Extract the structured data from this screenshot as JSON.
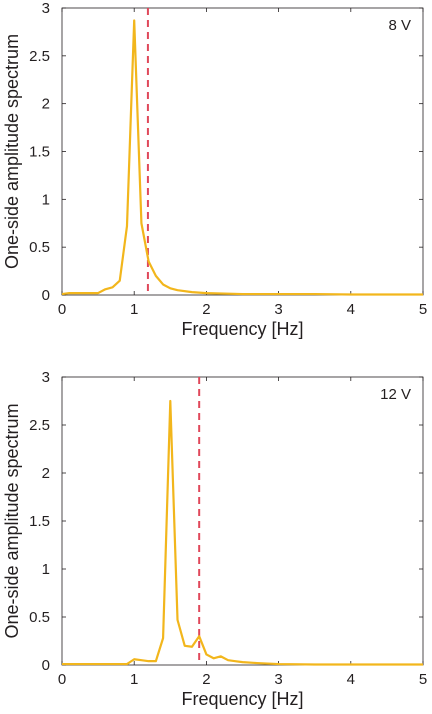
{
  "chart_data": [
    {
      "type": "line",
      "title": "",
      "annotation": "8 V",
      "xlabel": "Frequency [Hz]",
      "ylabel": "One-side amplitude spectrum",
      "xlim": [
        0,
        5
      ],
      "ylim": [
        0,
        3
      ],
      "xticks": [
        "0",
        "1",
        "2",
        "3",
        "4",
        "5"
      ],
      "yticks": [
        "0",
        "0.5",
        "1",
        "1.5",
        "2",
        "2.5",
        "3"
      ],
      "grid": false,
      "legend": "none",
      "colors": {
        "spectrum": "#f2b61c",
        "marker": "#e0485a"
      },
      "marker_line": {
        "x": 1.19,
        "style": "dashed"
      },
      "series": [
        {
          "x": [
            0,
            0.1,
            0.2,
            0.3,
            0.4,
            0.5,
            0.6,
            0.7,
            0.8,
            0.9,
            1.0,
            1.1,
            1.2,
            1.3,
            1.4,
            1.5,
            1.6,
            1.8,
            2.0,
            2.5,
            3.0,
            3.5,
            4.0,
            4.5,
            5.0
          ],
          "values": [
            0.01,
            0.02,
            0.02,
            0.02,
            0.02,
            0.02,
            0.06,
            0.08,
            0.15,
            0.72,
            2.87,
            0.75,
            0.35,
            0.2,
            0.11,
            0.07,
            0.05,
            0.03,
            0.02,
            0.01,
            0.01,
            0.01,
            0.005,
            0.005,
            0.005
          ]
        }
      ]
    },
    {
      "type": "line",
      "title": "",
      "annotation": "12 V",
      "xlabel": "Frequency [Hz]",
      "ylabel": "One-side amplitude spectrum",
      "xlim": [
        0,
        5
      ],
      "ylim": [
        0,
        3
      ],
      "xticks": [
        "0",
        "1",
        "2",
        "3",
        "4",
        "5"
      ],
      "yticks": [
        "0",
        "0.5",
        "1",
        "1.5",
        "2",
        "2.5",
        "3"
      ],
      "grid": false,
      "legend": "none",
      "colors": {
        "spectrum": "#f2b61c",
        "marker": "#e0485a"
      },
      "marker_line": {
        "x": 1.9,
        "style": "dashed"
      },
      "series": [
        {
          "x": [
            0,
            0.1,
            0.3,
            0.5,
            0.7,
            0.9,
            1.0,
            1.1,
            1.2,
            1.3,
            1.4,
            1.5,
            1.6,
            1.7,
            1.8,
            1.9,
            2.0,
            2.1,
            2.2,
            2.3,
            2.4,
            2.5,
            2.7,
            3.0,
            3.5,
            4.0,
            4.5,
            5.0
          ],
          "values": [
            0.01,
            0.01,
            0.01,
            0.01,
            0.01,
            0.01,
            0.06,
            0.05,
            0.04,
            0.04,
            0.28,
            2.75,
            0.47,
            0.2,
            0.19,
            0.3,
            0.11,
            0.07,
            0.09,
            0.05,
            0.04,
            0.03,
            0.02,
            0.01,
            0.005,
            0.005,
            0.005,
            0.005
          ]
        }
      ]
    }
  ]
}
